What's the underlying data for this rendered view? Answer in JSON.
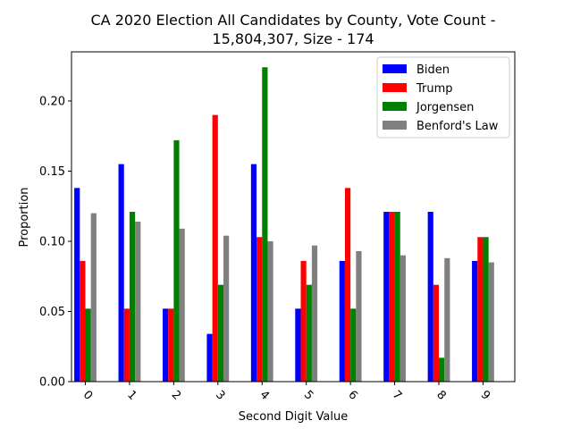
{
  "chart_data": {
    "type": "bar",
    "title_line1": "CA 2020 Election All Candidates by County, Vote Count -",
    "title_line2": "15,804,307, Size - 174",
    "xlabel": "Second Digit Value",
    "ylabel": "Proportion",
    "ylim": [
      0,
      0.235
    ],
    "yticks": [
      "0.00",
      "0.05",
      "0.10",
      "0.15",
      "0.20"
    ],
    "ytick_values": [
      0,
      0.05,
      0.1,
      0.15,
      0.2
    ],
    "categories": [
      "0",
      "1",
      "2",
      "3",
      "4",
      "5",
      "6",
      "7",
      "8",
      "9"
    ],
    "legend_position": "top-right",
    "grid": false,
    "series": [
      {
        "name": "Biden",
        "color": "#0000ff",
        "values": [
          0.138,
          0.155,
          0.052,
          0.034,
          0.155,
          0.052,
          0.086,
          0.121,
          0.121,
          0.086
        ]
      },
      {
        "name": "Trump",
        "color": "#ff0000",
        "values": [
          0.086,
          0.052,
          0.052,
          0.19,
          0.103,
          0.086,
          0.138,
          0.121,
          0.069,
          0.103
        ]
      },
      {
        "name": "Jorgensen",
        "color": "#008000",
        "values": [
          0.052,
          0.121,
          0.172,
          0.069,
          0.224,
          0.069,
          0.052,
          0.121,
          0.017,
          0.103
        ]
      },
      {
        "name": "Benford's Law",
        "color": "#808080",
        "values": [
          0.12,
          0.114,
          0.109,
          0.104,
          0.1,
          0.097,
          0.093,
          0.09,
          0.088,
          0.085
        ]
      }
    ]
  }
}
